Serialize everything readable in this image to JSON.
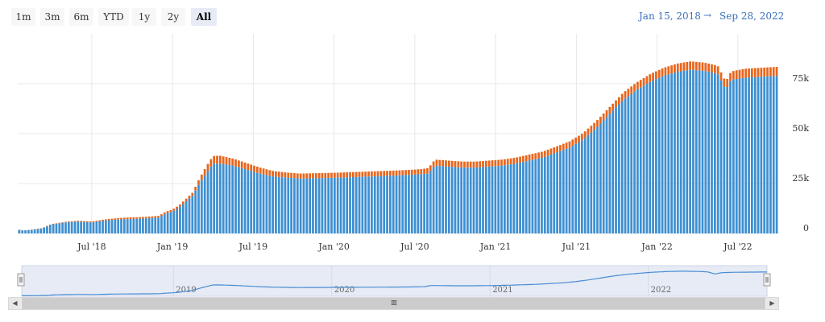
{
  "range_selector": {
    "buttons": [
      {
        "label": "1m",
        "active": false
      },
      {
        "label": "3m",
        "active": false
      },
      {
        "label": "6m",
        "active": false
      },
      {
        "label": "YTD",
        "active": false
      },
      {
        "label": "1y",
        "active": false
      },
      {
        "label": "2y",
        "active": false
      },
      {
        "label": "All",
        "active": true
      }
    ],
    "from_date": "Jan 15, 2018",
    "arrow": "→",
    "to_date": "Sep 28, 2022"
  },
  "navigator": {
    "year_labels": [
      "2019",
      "2020",
      "2021",
      "2022"
    ],
    "scrollbar_left": "◀",
    "scrollbar_right": "▶",
    "scrollbar_grip": "III"
  },
  "colors": {
    "series_blue": "#3d8fd1",
    "series_orange": "#e8661d",
    "grid": "#e8e8e8",
    "nav_fill": "#e6ebf5",
    "nav_line": "#4a8cd4"
  },
  "chart_data": {
    "type": "bar",
    "stacked": true,
    "x_range": [
      "2018-01-15",
      "2022-09-28"
    ],
    "x_tick_labels": [
      "Jul '18",
      "Jan '19",
      "Jul '19",
      "Jan '20",
      "Jul '20",
      "Jan '21",
      "Jul '21",
      "Jan '22",
      "Jul '22"
    ],
    "x_tick_months": [
      5.5,
      11.5,
      17.5,
      23.5,
      29.5,
      35.5,
      41.5,
      47.5,
      53.5
    ],
    "y_tick_labels": [
      "0",
      "25k",
      "50k",
      "75k"
    ],
    "y_tick_values": [
      0,
      25000,
      50000,
      75000
    ],
    "ylim": [
      0,
      100000
    ],
    "y_axis_position": "right",
    "total_months": 56.5,
    "series": [
      {
        "name": "blue",
        "color": "#3d8fd1",
        "anchors": [
          [
            0,
            2000
          ],
          [
            0.4,
            1500
          ],
          [
            1,
            1800
          ],
          [
            1.8,
            2500
          ],
          [
            2.5,
            4500
          ],
          [
            3.5,
            5500
          ],
          [
            4.5,
            6000
          ],
          [
            5.5,
            5500
          ],
          [
            6.5,
            6500
          ],
          [
            7.5,
            7000
          ],
          [
            9.5,
            7500
          ],
          [
            10.5,
            8000
          ],
          [
            11,
            10000
          ],
          [
            11.5,
            11000
          ],
          [
            12,
            13000
          ],
          [
            12.5,
            16000
          ],
          [
            13,
            19000
          ],
          [
            13.5,
            25000
          ],
          [
            14,
            30000
          ],
          [
            14.5,
            35000
          ],
          [
            15,
            35000
          ],
          [
            16,
            34000
          ],
          [
            17,
            32000
          ],
          [
            18,
            30000
          ],
          [
            19,
            28500
          ],
          [
            20,
            28000
          ],
          [
            21,
            27500
          ],
          [
            24,
            28000
          ],
          [
            26,
            28500
          ],
          [
            28,
            29000
          ],
          [
            29.5,
            29500
          ],
          [
            30.5,
            30000
          ],
          [
            31,
            34000
          ],
          [
            32,
            33500
          ],
          [
            33,
            33000
          ],
          [
            34,
            33000
          ],
          [
            35,
            33500
          ],
          [
            36,
            34000
          ],
          [
            37,
            35000
          ],
          [
            38,
            36500
          ],
          [
            39,
            38000
          ],
          [
            40,
            40500
          ],
          [
            41,
            43000
          ],
          [
            42,
            47000
          ],
          [
            43,
            53000
          ],
          [
            44,
            60000
          ],
          [
            45,
            67000
          ],
          [
            46,
            72000
          ],
          [
            47,
            76000
          ],
          [
            48,
            79000
          ],
          [
            49,
            81000
          ],
          [
            50,
            82000
          ],
          [
            51,
            81500
          ],
          [
            52,
            80000
          ],
          [
            52.6,
            72000
          ],
          [
            53,
            77000
          ],
          [
            54,
            78000
          ],
          [
            56.5,
            79000
          ]
        ]
      },
      {
        "name": "orange",
        "color": "#e8661d",
        "anchors": [
          [
            0,
            0
          ],
          [
            2.5,
            200
          ],
          [
            6,
            500
          ],
          [
            8,
            800
          ],
          [
            10,
            800
          ],
          [
            11.5,
            1000
          ],
          [
            13,
            1500
          ],
          [
            14,
            3500
          ],
          [
            15,
            4000
          ],
          [
            16,
            3500
          ],
          [
            18,
            3000
          ],
          [
            20,
            2500
          ],
          [
            24,
            2500
          ],
          [
            30,
            2500
          ],
          [
            31,
            3000
          ],
          [
            36,
            3000
          ],
          [
            40,
            3000
          ],
          [
            44,
            3500
          ],
          [
            48,
            4000
          ],
          [
            50,
            4200
          ],
          [
            52,
            4000
          ],
          [
            52.6,
            4000
          ],
          [
            54,
            4500
          ],
          [
            56.5,
            4500
          ]
        ]
      }
    ]
  }
}
